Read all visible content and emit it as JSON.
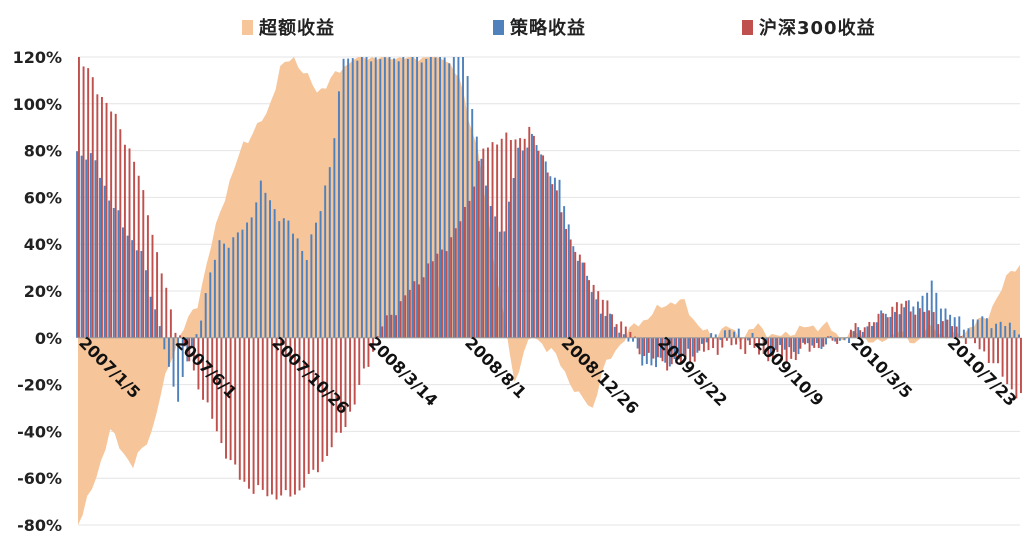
{
  "chart_data": {
    "type": "bar",
    "title": "",
    "xlabel": "",
    "ylabel": "",
    "ylim": [
      -80,
      120
    ],
    "yticks": [
      "-80%",
      "-60%",
      "-40%",
      "-20%",
      "0%",
      "20%",
      "40%",
      "60%",
      "80%",
      "100%",
      "120%"
    ],
    "ytick_values": [
      -80,
      -60,
      -40,
      -20,
      0,
      20,
      40,
      60,
      80,
      100,
      120
    ],
    "xtick_labels": [
      "2007/1/5",
      "2007/6/1",
      "2007/10/26",
      "2008/3/14",
      "2008/8/1",
      "2008/12/26",
      "2009/5/22",
      "2009/10/9",
      "2010/3/5",
      "2010/7/23"
    ],
    "xtick_index": [
      0,
      21,
      42,
      63,
      84,
      105,
      126,
      147,
      168,
      189
    ],
    "n_points": 206,
    "colors": {
      "excess": "#f6c59a",
      "strategy": "#4f81bd",
      "index": "#c0504d"
    },
    "legend": {
      "excess": "超额收益",
      "strategy": "策略收益",
      "index": "沪深300收益"
    },
    "excess_keys": [
      [
        0,
        -80
      ],
      [
        3,
        -65
      ],
      [
        7,
        -40
      ],
      [
        12,
        -55
      ],
      [
        16,
        -40
      ],
      [
        20,
        -10
      ],
      [
        22,
        0
      ],
      [
        26,
        15
      ],
      [
        31,
        55
      ],
      [
        36,
        83
      ],
      [
        41,
        95
      ],
      [
        44,
        115
      ],
      [
        47,
        120
      ],
      [
        52,
        105
      ],
      [
        56,
        112
      ],
      [
        60,
        120
      ],
      [
        80,
        120
      ],
      [
        83,
        110
      ],
      [
        87,
        80
      ],
      [
        90,
        40
      ],
      [
        93,
        5
      ],
      [
        95,
        -20
      ],
      [
        97,
        -5
      ],
      [
        99,
        0
      ],
      [
        103,
        -5
      ],
      [
        106,
        -15
      ],
      [
        109,
        -25
      ],
      [
        112,
        -30
      ],
      [
        114,
        -15
      ],
      [
        117,
        -5
      ],
      [
        121,
        5
      ],
      [
        125,
        10
      ],
      [
        128,
        15
      ],
      [
        132,
        15
      ],
      [
        135,
        5
      ],
      [
        138,
        0
      ],
      [
        141,
        5
      ],
      [
        144,
        0
      ],
      [
        148,
        5
      ],
      [
        152,
        0
      ],
      [
        156,
        3
      ],
      [
        160,
        5
      ],
      [
        163,
        5
      ],
      [
        166,
        0
      ],
      [
        170,
        2
      ],
      [
        174,
        -3
      ],
      [
        178,
        3
      ],
      [
        182,
        -2
      ],
      [
        186,
        5
      ],
      [
        189,
        0
      ],
      [
        192,
        2
      ],
      [
        195,
        5
      ],
      [
        198,
        10
      ],
      [
        201,
        20
      ],
      [
        203,
        30
      ],
      [
        205,
        30
      ]
    ],
    "strategy_keys": [
      [
        0,
        80
      ],
      [
        4,
        75
      ],
      [
        8,
        55
      ],
      [
        11,
        45
      ],
      [
        14,
        35
      ],
      [
        16,
        20
      ],
      [
        18,
        5
      ],
      [
        20,
        -15
      ],
      [
        22,
        -25
      ],
      [
        24,
        -10
      ],
      [
        26,
        0
      ],
      [
        28,
        20
      ],
      [
        31,
        40
      ],
      [
        34,
        42
      ],
      [
        37,
        48
      ],
      [
        40,
        65
      ],
      [
        43,
        55
      ],
      [
        46,
        48
      ],
      [
        48,
        42
      ],
      [
        50,
        35
      ],
      [
        53,
        55
      ],
      [
        56,
        85
      ],
      [
        58,
        120
      ],
      [
        84,
        120
      ],
      [
        86,
        100
      ],
      [
        88,
        75
      ],
      [
        90,
        55
      ],
      [
        93,
        45
      ],
      [
        96,
        80
      ],
      [
        99,
        85
      ],
      [
        102,
        75
      ],
      [
        105,
        65
      ],
      [
        108,
        40
      ],
      [
        111,
        25
      ],
      [
        114,
        12
      ],
      [
        117,
        5
      ],
      [
        120,
        0
      ],
      [
        123,
        -10
      ],
      [
        126,
        -12
      ],
      [
        129,
        -10
      ],
      [
        132,
        -8
      ],
      [
        135,
        -5
      ],
      [
        138,
        0
      ],
      [
        141,
        3
      ],
      [
        144,
        2
      ],
      [
        148,
        0
      ],
      [
        152,
        -5
      ],
      [
        156,
        -5
      ],
      [
        160,
        -3
      ],
      [
        164,
        -2
      ],
      [
        168,
        0
      ],
      [
        172,
        5
      ],
      [
        176,
        10
      ],
      [
        180,
        12
      ],
      [
        184,
        18
      ],
      [
        186,
        22
      ],
      [
        188,
        15
      ],
      [
        190,
        10
      ],
      [
        193,
        5
      ],
      [
        196,
        8
      ],
      [
        199,
        7
      ],
      [
        202,
        5
      ],
      [
        205,
        4
      ]
    ],
    "index_keys": [
      [
        0,
        120
      ],
      [
        3,
        110
      ],
      [
        6,
        100
      ],
      [
        9,
        90
      ],
      [
        12,
        75
      ],
      [
        15,
        55
      ],
      [
        17,
        35
      ],
      [
        19,
        20
      ],
      [
        21,
        5
      ],
      [
        23,
        -5
      ],
      [
        25,
        -15
      ],
      [
        27,
        -25
      ],
      [
        29,
        -35
      ],
      [
        31,
        -45
      ],
      [
        33,
        -53
      ],
      [
        35,
        -60
      ],
      [
        38,
        -65
      ],
      [
        42,
        -67
      ],
      [
        45,
        -68
      ],
      [
        48,
        -65
      ],
      [
        51,
        -58
      ],
      [
        54,
        -50
      ],
      [
        57,
        -40
      ],
      [
        60,
        -28
      ],
      [
        62,
        -15
      ],
      [
        64,
        -5
      ],
      [
        66,
        5
      ],
      [
        70,
        15
      ],
      [
        74,
        25
      ],
      [
        78,
        35
      ],
      [
        82,
        45
      ],
      [
        85,
        60
      ],
      [
        88,
        80
      ],
      [
        91,
        85
      ],
      [
        95,
        85
      ],
      [
        98,
        88
      ],
      [
        101,
        78
      ],
      [
        104,
        60
      ],
      [
        107,
        42
      ],
      [
        110,
        30
      ],
      [
        113,
        20
      ],
      [
        116,
        10
      ],
      [
        119,
        5
      ],
      [
        122,
        -5
      ],
      [
        126,
        -10
      ],
      [
        130,
        -12
      ],
      [
        134,
        -8
      ],
      [
        138,
        -5
      ],
      [
        142,
        -3
      ],
      [
        146,
        -5
      ],
      [
        150,
        -8
      ],
      [
        154,
        -10
      ],
      [
        158,
        -5
      ],
      [
        162,
        -3
      ],
      [
        166,
        0
      ],
      [
        170,
        5
      ],
      [
        174,
        8
      ],
      [
        178,
        15
      ],
      [
        182,
        12
      ],
      [
        186,
        10
      ],
      [
        190,
        5
      ],
      [
        193,
        0
      ],
      [
        196,
        -5
      ],
      [
        199,
        -10
      ],
      [
        202,
        -20
      ],
      [
        205,
        -25
      ]
    ]
  }
}
